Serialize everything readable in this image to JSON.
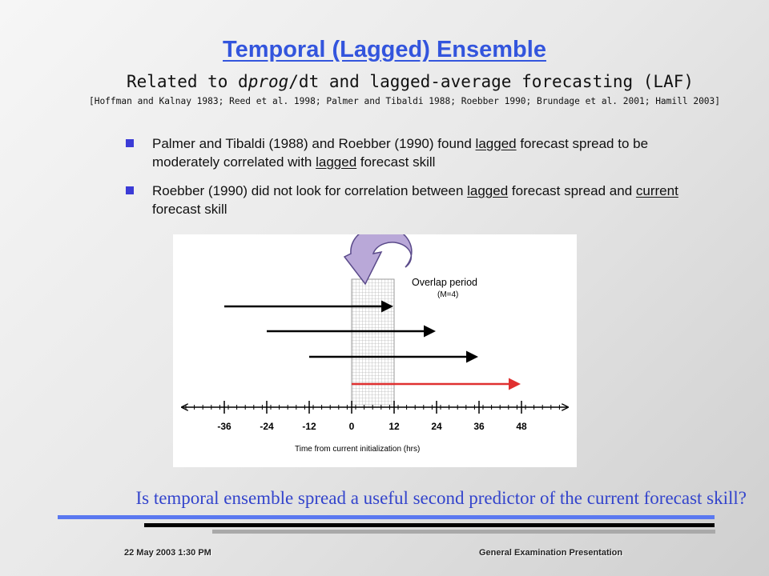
{
  "slide": {
    "title": "Temporal (Lagged) Ensemble",
    "subtitle_pre": "Related to d",
    "subtitle_em": "prog",
    "subtitle_post": "/dt and lagged-average forecasting (LAF)",
    "references": "[Hoffman and Kalnay 1983; Reed et al. 1998; Palmer and Tibaldi 1988; Roebber 1990; Brundage et al. 2001; Hamill 2003]",
    "bullets": [
      {
        "t1": "Palmer and Tibaldi (1988) and Roebber (1990) found ",
        "u1": "lagged",
        "t2": " forecast spread to be moderately correlated with ",
        "u2": "lagged",
        "t3": " forecast skill"
      },
      {
        "t1": "Roebber (1990) did not look for correlation between ",
        "u1": "lagged",
        "t2": " forecast spread and ",
        "u2": "current",
        "t3": " forecast skill"
      }
    ],
    "question": "Is temporal ensemble spread a useful second predictor of the current forecast skill?",
    "footer_left": "22 May 2003 1:30 PM",
    "footer_right": "General Examination Presentation",
    "accent_color": "#3355dd",
    "bullet_color": "#3b3bd6"
  },
  "diagram": {
    "overlap_label": "Overlap period",
    "overlap_sublabel": "(M=4)",
    "axis_label": "Time from current initialization (hrs)",
    "ticks": [
      "-36",
      "-24",
      "-12",
      "0",
      "12",
      "24",
      "36",
      "48"
    ],
    "forecast_arrows": [
      {
        "start_hr": -36,
        "end_hr": 12,
        "color": "#000000"
      },
      {
        "start_hr": -24,
        "end_hr": 24,
        "color": "#000000"
      },
      {
        "start_hr": -12,
        "end_hr": 36,
        "color": "#000000"
      },
      {
        "start_hr": 0,
        "end_hr": 48,
        "color": "#e03030"
      }
    ],
    "overlap_start_hr": 0,
    "overlap_end_hr": 12
  }
}
